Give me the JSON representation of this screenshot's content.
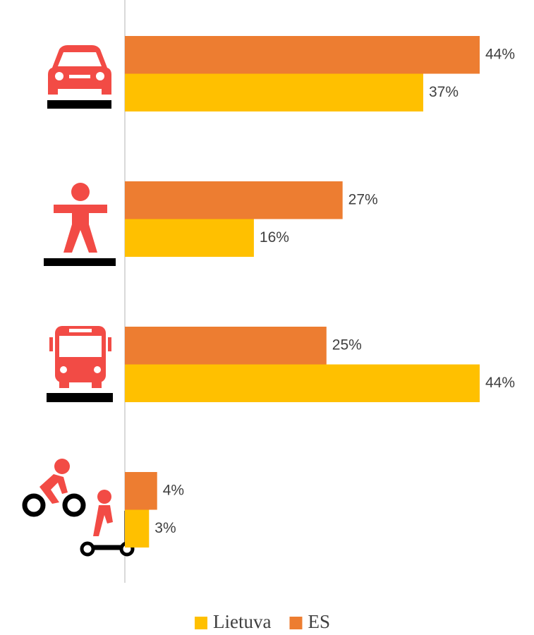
{
  "chart_data": {
    "type": "hbar",
    "categories": [
      null,
      null,
      null,
      null
    ],
    "series": [
      {
        "name": "Lietuva",
        "color": "#FFC000",
        "values": [
          37,
          16,
          44,
          3
        ],
        "value_labels": [
          "37%",
          "16%",
          "44%",
          "3%"
        ]
      },
      {
        "name": "ES",
        "color": "#ED7D31",
        "values": [
          44,
          27,
          25,
          4
        ],
        "value_labels": [
          "44%",
          "27%",
          "25%",
          "4%"
        ]
      }
    ],
    "xlim": [
      0,
      44
    ],
    "legend": "bottom"
  }
}
